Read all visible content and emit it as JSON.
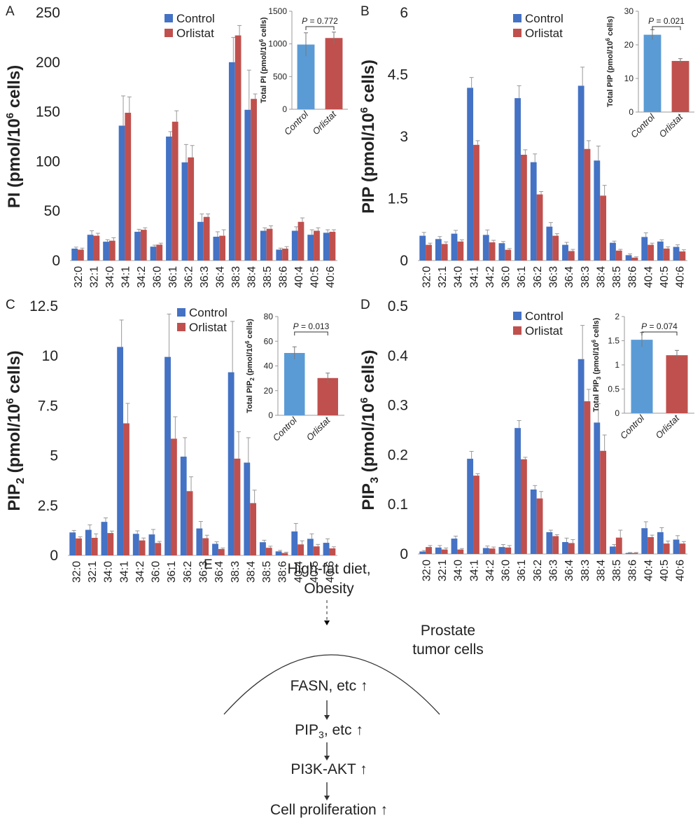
{
  "colors": {
    "control": "#4472C4",
    "orlistat": "#C0504D",
    "inset_control": "#5B9BD5",
    "inset_orlistat": "#C0504D"
  },
  "chart_data": [
    {
      "panel": "A",
      "type": "bar",
      "ylabel_main": "PI (pmol/10",
      "ylabel_sup": "6",
      "ylabel_tail": " cells)",
      "ylim": [
        0,
        250
      ],
      "yticks": [
        "0",
        "50",
        "100",
        "150",
        "200",
        "250"
      ],
      "categories": [
        "32:0",
        "32:1",
        "34:0",
        "34:1",
        "34:2",
        "36:0",
        "36:1",
        "36:2",
        "36:3",
        "36:4",
        "38:3",
        "38:4",
        "38:5",
        "38:6",
        "40:4",
        "40:5",
        "40:6"
      ],
      "series": [
        {
          "name": "Control",
          "values": [
            12,
            26,
            19,
            136,
            29,
            14,
            125,
            99,
            39,
            24,
            200,
            152,
            30,
            11,
            30,
            26,
            28
          ],
          "errors": [
            1.5,
            4,
            2,
            30,
            2.5,
            1.5,
            5,
            18,
            8,
            5,
            25,
            40,
            3,
            1.5,
            4,
            5,
            3
          ]
        },
        {
          "name": "Orlistat",
          "values": [
            11,
            25,
            20,
            149,
            31,
            16,
            140,
            104,
            44,
            25,
            227,
            163,
            32,
            12,
            39,
            30,
            29
          ],
          "errors": [
            1.5,
            2.5,
            3,
            16,
            2,
            1.5,
            11,
            12,
            3,
            6,
            10,
            5,
            3,
            2,
            4,
            3,
            2
          ]
        }
      ],
      "inset": {
        "ylabel_main": "Total PI (pmol/10",
        "ylabel_sup": "6",
        "ylabel_tail": " cells)",
        "ylim": [
          0,
          1500
        ],
        "yticks": [
          "0",
          "500",
          "1000",
          "1500"
        ],
        "categories": [
          "Control",
          "Orlistat"
        ],
        "values": [
          990,
          1090
        ],
        "errors": [
          180,
          90
        ],
        "p_label": "P",
        "p_value": "= 0.772"
      }
    },
    {
      "panel": "B",
      "type": "bar",
      "ylabel_main": "PIP (pmol/10",
      "ylabel_sup": "6",
      "ylabel_tail": " cells)",
      "ylim": [
        0,
        6
      ],
      "yticks": [
        "0",
        "1.5",
        "3",
        "4.5",
        "6"
      ],
      "categories": [
        "32:0",
        "32:1",
        "34:0",
        "34:1",
        "34:2",
        "36:0",
        "36:1",
        "36:2",
        "36:3",
        "36:4",
        "38:3",
        "38:4",
        "38:5",
        "38:6",
        "40:4",
        "40:5",
        "40:6"
      ],
      "series": [
        {
          "name": "Control",
          "values": [
            0.6,
            0.52,
            0.65,
            4.18,
            0.62,
            0.42,
            3.93,
            2.38,
            0.82,
            0.38,
            4.23,
            2.42,
            0.43,
            0.13,
            0.57,
            0.46,
            0.33
          ],
          "errors": [
            0.08,
            0.06,
            0.08,
            0.25,
            0.12,
            0.04,
            0.3,
            0.2,
            0.1,
            0.06,
            0.45,
            0.35,
            0.04,
            0.03,
            0.1,
            0.04,
            0.05
          ]
        },
        {
          "name": "Orlistat",
          "values": [
            0.38,
            0.4,
            0.46,
            2.8,
            0.44,
            0.26,
            2.56,
            1.6,
            0.6,
            0.23,
            2.7,
            1.57,
            0.24,
            0.07,
            0.38,
            0.29,
            0.22
          ],
          "errors": [
            0.04,
            0.05,
            0.04,
            0.1,
            0.05,
            0.03,
            0.12,
            0.07,
            0.05,
            0.04,
            0.2,
            0.25,
            0.03,
            0.02,
            0.04,
            0.04,
            0.04
          ]
        }
      ],
      "inset": {
        "ylabel_main": "Total PIP (pmol/10",
        "ylabel_sup": "6",
        "ylabel_tail": " cells)",
        "ylim": [
          0,
          30
        ],
        "yticks": [
          "0",
          "10",
          "20",
          "30"
        ],
        "categories": [
          "Control",
          "Orlistat"
        ],
        "values": [
          23,
          15.2
        ],
        "errors": [
          1.5,
          0.7
        ],
        "p_label": "P",
        "p_value": "= 0.021"
      }
    },
    {
      "panel": "C",
      "type": "bar",
      "ylabel_main": "PIP",
      "ylabel_sub": "2",
      "ylabel_tail": " (pmol/10",
      "ylabel_sup": "6",
      "ylabel_end": " cells)",
      "ylim": [
        0,
        12.5
      ],
      "yticks": [
        "0",
        "2.5",
        "5",
        "7.5",
        "10",
        "12.5"
      ],
      "categories": [
        "32:0",
        "32:1",
        "34:0",
        "34:1",
        "34:2",
        "36:0",
        "36:1",
        "36:2",
        "36:3",
        "36:4",
        "38:3",
        "38:4",
        "38:5",
        "38:6",
        "40:4",
        "40:5",
        "40:6"
      ],
      "series": [
        {
          "name": "Control",
          "values": [
            1.15,
            1.28,
            1.68,
            10.45,
            1.08,
            1.05,
            9.95,
            4.95,
            1.35,
            0.58,
            9.18,
            4.65,
            0.66,
            0.2,
            1.2,
            0.83,
            0.63
          ],
          "errors": [
            0.1,
            0.25,
            0.2,
            1.35,
            0.15,
            0.25,
            2.15,
            0.95,
            0.35,
            0.1,
            2.55,
            1.25,
            0.1,
            0.05,
            0.4,
            0.25,
            0.2
          ]
        },
        {
          "name": "Orlistat",
          "values": [
            0.85,
            0.88,
            1.12,
            6.62,
            0.75,
            0.62,
            5.85,
            3.22,
            0.86,
            0.32,
            4.85,
            2.62,
            0.38,
            0.12,
            0.55,
            0.45,
            0.35
          ],
          "errors": [
            0.08,
            0.2,
            0.1,
            1.0,
            0.12,
            0.08,
            1.1,
            0.72,
            0.15,
            0.05,
            1.35,
            0.65,
            0.08,
            0.04,
            0.18,
            0.1,
            0.08
          ]
        }
      ],
      "inset": {
        "ylabel_main": "Total PIP",
        "ylabel_sub": "2",
        "ylabel_tail": " (pmol/10",
        "ylabel_sup": "6",
        "ylabel_end": " cells)",
        "ylim": [
          0,
          80
        ],
        "yticks": [
          "0",
          "20",
          "40",
          "60",
          "80"
        ],
        "categories": [
          "Control",
          "Orlistat"
        ],
        "values": [
          50.5,
          30.2
        ],
        "errors": [
          5,
          4
        ],
        "p_label": "P",
        "p_value": "= 0.013"
      }
    },
    {
      "panel": "D",
      "type": "bar",
      "ylabel_main": "PIP",
      "ylabel_sub": "3",
      "ylabel_tail": " (pmol/10",
      "ylabel_sup": "6",
      "ylabel_end": " cells)",
      "ylim": [
        0,
        0.5
      ],
      "yticks": [
        "0",
        "0.1",
        "0.2",
        "0.3",
        "0.4",
        "0.5"
      ],
      "categories": [
        "32:0",
        "32:1",
        "34:0",
        "34:1",
        "34:2",
        "36:0",
        "36:1",
        "36:2",
        "36:3",
        "36:4",
        "38:3",
        "38:4",
        "38:5",
        "38:6",
        "40:4",
        "40:5",
        "40:6"
      ],
      "series": [
        {
          "name": "Control",
          "values": [
            0.005,
            0.013,
            0.031,
            0.192,
            0.012,
            0.014,
            0.254,
            0.13,
            0.044,
            0.024,
            0.393,
            0.265,
            0.015,
            0.002,
            0.052,
            0.044,
            0.029
          ],
          "errors": [
            0.002,
            0.004,
            0.005,
            0.015,
            0.004,
            0.005,
            0.015,
            0.008,
            0.004,
            0.008,
            0.068,
            0.038,
            0.004,
            0.001,
            0.013,
            0.009,
            0.008
          ]
        },
        {
          "name": "Orlistat",
          "values": [
            0.014,
            0.009,
            0.009,
            0.158,
            0.011,
            0.013,
            0.191,
            0.112,
            0.036,
            0.022,
            0.308,
            0.208,
            0.033,
            0.002,
            0.034,
            0.021,
            0.021
          ],
          "errors": [
            0.003,
            0.003,
            0.002,
            0.004,
            0.003,
            0.004,
            0.004,
            0.014,
            0.003,
            0.007,
            0.024,
            0.032,
            0.015,
            0.001,
            0.004,
            0.005,
            0.004
          ]
        }
      ],
      "inset": {
        "ylabel_main": "Total PIP",
        "ylabel_sub": "3",
        "ylabel_tail": " (pmol/10",
        "ylabel_sup": "6",
        "ylabel_end": " cells)",
        "ylim": [
          0,
          2
        ],
        "yticks": [
          "0",
          "0.5",
          "1",
          "1.5",
          "2"
        ],
        "categories": [
          "Control",
          "Orlistat"
        ],
        "values": [
          1.52,
          1.2
        ],
        "errors": [
          0.15,
          0.1
        ],
        "p_label": "P",
        "p_value": "= 0.074"
      }
    }
  ],
  "diagram": {
    "panel": "E",
    "cause": "High-fat diet,",
    "cause2": "Obesity",
    "cell_label1": "Prostate",
    "cell_label2": "tumor cells",
    "step1": "FASN, etc",
    "step2_main": "PIP",
    "step2_sub": "3",
    "step2_tail": ", etc",
    "step3": "PI3K-AKT",
    "step4": "Cell proliferation",
    "up_arrow": "↑"
  }
}
